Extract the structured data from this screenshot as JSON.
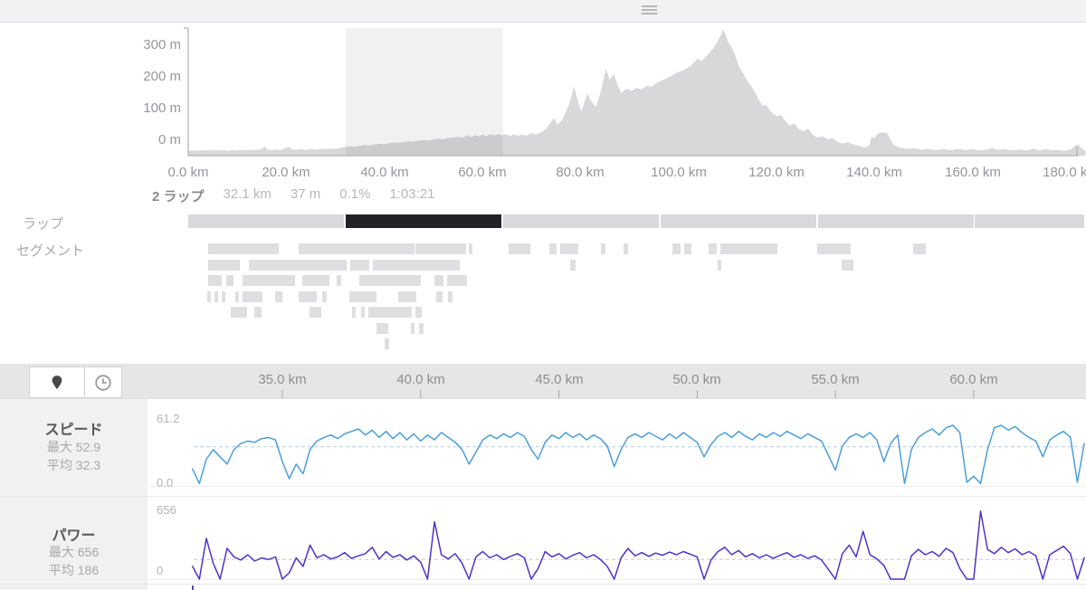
{
  "top_bar": {
    "drag_handle_icon": "drag-handle"
  },
  "lap_summary": {
    "count": "2 ラップ",
    "distance": "32.1 km",
    "elevation_gain": "37 m",
    "grade": "0.1%",
    "time": "1:03:21"
  },
  "laps": {
    "label": "ラップ",
    "start_km": [
      0,
      32.1,
      64.2,
      96.3,
      128.4,
      160.5
    ],
    "end_km": 183.4,
    "selected_index": 1
  },
  "segments": {
    "label": "セグメント",
    "rows": [
      [
        [
          230,
          78
        ],
        [
          330,
          128
        ],
        [
          459,
          56
        ],
        [
          518,
          4
        ],
        [
          562,
          24
        ],
        [
          607,
          8
        ],
        [
          619,
          20
        ],
        [
          664,
          5
        ],
        [
          689,
          5
        ],
        [
          743,
          9
        ],
        [
          756,
          8
        ],
        [
          783,
          9
        ],
        [
          796,
          63
        ],
        [
          903,
          37
        ],
        [
          1009,
          14
        ]
      ],
      [
        [
          230,
          35
        ],
        [
          275,
          108
        ],
        [
          387,
          21
        ],
        [
          412,
          96
        ],
        [
          630,
          6
        ],
        [
          793,
          4
        ],
        [
          930,
          13
        ]
      ],
      [
        [
          230,
          15
        ],
        [
          250,
          8
        ],
        [
          268,
          58
        ],
        [
          334,
          30
        ],
        [
          372,
          5
        ],
        [
          397,
          68
        ],
        [
          480,
          10
        ],
        [
          494,
          22
        ]
      ],
      [
        [
          229,
          4
        ],
        [
          237,
          4
        ],
        [
          245,
          4
        ],
        [
          260,
          4
        ],
        [
          268,
          22
        ],
        [
          304,
          8
        ],
        [
          330,
          20
        ],
        [
          356,
          5
        ],
        [
          386,
          30
        ],
        [
          440,
          20
        ],
        [
          482,
          7
        ],
        [
          495,
          5
        ]
      ],
      [
        [
          255,
          18
        ],
        [
          281,
          8
        ],
        [
          342,
          13
        ],
        [
          389,
          4
        ],
        [
          399,
          4
        ],
        [
          407,
          48
        ],
        [
          459,
          7
        ]
      ],
      [
        [
          416,
          13
        ],
        [
          454,
          4
        ],
        [
          463,
          5
        ]
      ],
      [
        [
          425,
          5
        ]
      ]
    ]
  },
  "bottom_toolbar": {
    "buttons": [
      {
        "icon": "location-pin",
        "active": true
      },
      {
        "icon": "clock",
        "active": false
      }
    ],
    "x_ticks": [
      {
        "km": 35,
        "label": "35.0 km"
      },
      {
        "km": 40,
        "label": "40.0 km"
      },
      {
        "km": 45,
        "label": "45.0 km"
      },
      {
        "km": 50,
        "label": "50.0 km"
      },
      {
        "km": 55,
        "label": "55.0 km"
      },
      {
        "km": 60,
        "label": "60.0 km"
      }
    ]
  },
  "colors": {
    "speed_line": "#4c9fd9",
    "speed_avg_dash": "#a9cfec",
    "power_line": "#4a36c8",
    "power_avg_dash": "#c8c8d2",
    "elevation_fill": "#d8d8da",
    "selection_overlay": "rgba(50,50,60,0.07)",
    "lap_bar": "#d9d9db",
    "lap_bar_selected": "#232327",
    "segment_bar": "#dfdfe1",
    "axis": "#b4b4b8"
  },
  "chart_data": [
    {
      "type": "area",
      "name": "elevation-profile",
      "x_unit": "km",
      "y_unit": "m",
      "x_range": [
        0,
        183.4
      ],
      "y_ticks": [
        {
          "v": 300,
          "label": "300 m"
        },
        {
          "v": 200,
          "label": "200 m"
        },
        {
          "v": 100,
          "label": "100 m"
        },
        {
          "v": 0,
          "label": "0 m"
        }
      ],
      "x_ticks": [
        {
          "km": 0,
          "label": "0.0 km"
        },
        {
          "km": 20,
          "label": "20.0 km"
        },
        {
          "km": 40,
          "label": "40.0 km"
        },
        {
          "km": 60,
          "label": "60.0 km"
        },
        {
          "km": 80,
          "label": "80.0 km"
        },
        {
          "km": 100,
          "label": "100.0 km"
        },
        {
          "km": 120,
          "label": "120.0 km"
        },
        {
          "km": 140,
          "label": "140.0 km"
        },
        {
          "km": 160,
          "label": "160.0 km"
        },
        {
          "km": 180,
          "label": "180.0 km"
        }
      ],
      "selection_km": [
        32.1,
        64.2
      ],
      "points": [
        [
          0,
          3
        ],
        [
          1,
          5
        ],
        [
          2,
          4
        ],
        [
          3,
          6
        ],
        [
          4,
          4
        ],
        [
          5,
          6
        ],
        [
          6,
          5
        ],
        [
          7,
          7
        ],
        [
          8,
          4
        ],
        [
          9,
          6
        ],
        [
          10,
          5
        ],
        [
          11,
          7
        ],
        [
          12,
          5
        ],
        [
          13,
          8
        ],
        [
          14,
          6
        ],
        [
          15,
          10
        ],
        [
          15.6,
          17
        ],
        [
          16.2,
          8
        ],
        [
          17,
          6
        ],
        [
          18,
          8
        ],
        [
          19,
          6
        ],
        [
          20,
          14
        ],
        [
          20.6,
          16
        ],
        [
          21.2,
          8
        ],
        [
          22,
          7
        ],
        [
          23,
          9
        ],
        [
          24,
          7
        ],
        [
          25,
          9
        ],
        [
          26,
          8
        ],
        [
          27,
          10
        ],
        [
          28,
          9
        ],
        [
          29,
          11
        ],
        [
          30,
          10
        ],
        [
          31,
          13
        ],
        [
          32,
          16
        ],
        [
          33,
          18
        ],
        [
          34,
          17
        ],
        [
          35,
          20
        ],
        [
          36,
          22
        ],
        [
          37,
          21
        ],
        [
          38,
          24
        ],
        [
          39,
          26
        ],
        [
          40,
          25
        ],
        [
          41,
          28
        ],
        [
          42,
          30
        ],
        [
          43,
          29
        ],
        [
          44,
          32
        ],
        [
          45,
          34
        ],
        [
          46,
          33
        ],
        [
          47,
          36
        ],
        [
          48,
          38
        ],
        [
          49,
          37
        ],
        [
          50,
          40
        ],
        [
          51,
          42
        ],
        [
          52,
          41
        ],
        [
          53,
          44
        ],
        [
          54,
          46
        ],
        [
          55,
          48
        ],
        [
          56,
          46
        ],
        [
          57,
          52
        ],
        [
          57.7,
          47
        ],
        [
          58.5,
          53
        ],
        [
          59.2,
          49
        ],
        [
          60,
          55
        ],
        [
          60.8,
          50
        ],
        [
          61.6,
          56
        ],
        [
          62.4,
          52
        ],
        [
          63.2,
          57
        ],
        [
          64,
          53
        ],
        [
          64.8,
          57
        ],
        [
          65.6,
          50
        ],
        [
          66.4,
          56
        ],
        [
          67.2,
          51
        ],
        [
          68,
          55
        ],
        [
          69,
          52
        ],
        [
          70,
          60
        ],
        [
          71,
          55
        ],
        [
          72,
          62
        ],
        [
          73,
          72
        ],
        [
          74,
          95
        ],
        [
          74.6,
          108
        ],
        [
          75.3,
          85
        ],
        [
          76.2,
          100
        ],
        [
          77,
          125
        ],
        [
          77.8,
          155
        ],
        [
          78.7,
          208
        ],
        [
          79.4,
          165
        ],
        [
          80.2,
          128
        ],
        [
          81.4,
          185
        ],
        [
          82.2,
          160
        ],
        [
          83.2,
          142
        ],
        [
          84.2,
          195
        ],
        [
          85.2,
          262
        ],
        [
          86,
          228
        ],
        [
          86.8,
          248
        ],
        [
          87.6,
          210
        ],
        [
          88.4,
          186
        ],
        [
          89.4,
          200
        ],
        [
          90.4,
          193
        ],
        [
          91.5,
          203
        ],
        [
          92.5,
          198
        ],
        [
          93.5,
          210
        ],
        [
          94.5,
          205
        ],
        [
          95.5,
          218
        ],
        [
          96.5,
          225
        ],
        [
          97.5,
          232
        ],
        [
          98.5,
          240
        ],
        [
          99.5,
          250
        ],
        [
          100.5,
          255
        ],
        [
          101.5,
          262
        ],
        [
          102.5,
          272
        ],
        [
          103.3,
          285
        ],
        [
          104,
          295
        ],
        [
          104.7,
          287
        ],
        [
          105.5,
          300
        ],
        [
          106.3,
          312
        ],
        [
          107.1,
          328
        ],
        [
          107.9,
          348
        ],
        [
          108.6,
          368
        ],
        [
          109.1,
          388
        ],
        [
          109.6,
          372
        ],
        [
          110.2,
          345
        ],
        [
          110.8,
          332
        ],
        [
          111.6,
          305
        ],
        [
          112.4,
          268
        ],
        [
          113.2,
          248
        ],
        [
          114,
          225
        ],
        [
          114.8,
          210
        ],
        [
          115.6,
          188
        ],
        [
          116.4,
          165
        ],
        [
          117.2,
          145
        ],
        [
          117.9,
          150
        ],
        [
          118.6,
          132
        ],
        [
          119.4,
          120
        ],
        [
          120.2,
          112
        ],
        [
          120.9,
          118
        ],
        [
          121.8,
          98
        ],
        [
          122.7,
          84
        ],
        [
          123.6,
          90
        ],
        [
          124.6,
          72
        ],
        [
          125.6,
          66
        ],
        [
          126.4,
          74
        ],
        [
          127.4,
          54
        ],
        [
          128.4,
          46
        ],
        [
          129.4,
          50
        ],
        [
          130.4,
          40
        ],
        [
          131.4,
          44
        ],
        [
          132.4,
          33
        ],
        [
          133.5,
          27
        ],
        [
          134.6,
          31
        ],
        [
          135.7,
          24
        ],
        [
          136.8,
          19
        ],
        [
          138,
          14
        ],
        [
          139,
          22
        ],
        [
          139.4,
          50
        ],
        [
          139.9,
          42
        ],
        [
          140.6,
          58
        ],
        [
          141.6,
          62
        ],
        [
          142.6,
          60
        ],
        [
          143.2,
          40
        ],
        [
          143.9,
          22
        ],
        [
          145,
          15
        ],
        [
          146.5,
          10
        ],
        [
          148,
          12
        ],
        [
          149.5,
          7
        ],
        [
          151,
          10
        ],
        [
          152.5,
          6
        ],
        [
          154,
          9
        ],
        [
          155.5,
          6
        ],
        [
          157,
          10
        ],
        [
          158.5,
          6
        ],
        [
          160,
          9
        ],
        [
          161.5,
          5
        ],
        [
          163,
          8
        ],
        [
          164,
          13
        ],
        [
          165,
          6
        ],
        [
          166.5,
          9
        ],
        [
          168,
          5
        ],
        [
          169.5,
          8
        ],
        [
          171,
          5
        ],
        [
          172.5,
          11
        ],
        [
          173.5,
          5
        ],
        [
          175,
          9
        ],
        [
          176.2,
          5
        ],
        [
          177.5,
          7
        ],
        [
          178.7,
          4
        ],
        [
          180,
          8
        ],
        [
          180.8,
          20
        ],
        [
          181.6,
          24
        ],
        [
          182.3,
          10
        ],
        [
          183,
          4
        ]
      ]
    },
    {
      "type": "line",
      "name": "speed",
      "title": "スピード",
      "max_label": "最大 52.9",
      "avg_label": "平均 32.3",
      "max": 52.9,
      "avg": 32.3,
      "axis_max": 61.2,
      "axis_min": 0,
      "axis_max_label": "61.2",
      "axis_min_label": "0.0",
      "unit": "km/h",
      "start_km": 31.75,
      "step_km": 0.25,
      "values": [
        14,
        2,
        22,
        30,
        24,
        18,
        30,
        35,
        37,
        36,
        39,
        40,
        38,
        20,
        6,
        18,
        10,
        30,
        37,
        40,
        42,
        39,
        43,
        45,
        47,
        42,
        46,
        40,
        45,
        39,
        44,
        38,
        43,
        37,
        42,
        38,
        44,
        40,
        36,
        30,
        18,
        28,
        38,
        42,
        39,
        43,
        40,
        44,
        41,
        30,
        22,
        36,
        42,
        39,
        44,
        40,
        43,
        38,
        42,
        39,
        33,
        16,
        30,
        40,
        43,
        40,
        44,
        41,
        38,
        43,
        39,
        44,
        40,
        36,
        24,
        34,
        41,
        44,
        40,
        45,
        41,
        38,
        43,
        40,
        44,
        41,
        45,
        42,
        39,
        43,
        40,
        37,
        25,
        13,
        33,
        40,
        43,
        40,
        44,
        38,
        20,
        35,
        42,
        2,
        30,
        40,
        44,
        47,
        42,
        48,
        50,
        44,
        3,
        8,
        2,
        30,
        48,
        50,
        46,
        49,
        44,
        40,
        37,
        24,
        38,
        42,
        45,
        40,
        3,
        35
      ]
    },
    {
      "type": "line",
      "name": "power",
      "title": "パワー",
      "max_label": "最大 656",
      "avg_label": "平均 186",
      "max": 656,
      "avg": 186,
      "axis_max": 656,
      "axis_min": 0,
      "axis_max_label": "656",
      "axis_min_label": "0",
      "unit": "W",
      "start_km": 31.75,
      "step_km": 0.25,
      "values": [
        120,
        0,
        383,
        150,
        0,
        290,
        210,
        180,
        230,
        170,
        200,
        185,
        210,
        0,
        60,
        200,
        120,
        320,
        200,
        230,
        190,
        210,
        250,
        195,
        220,
        240,
        300,
        190,
        260,
        205,
        230,
        180,
        220,
        160,
        0,
        540,
        230,
        190,
        240,
        150,
        0,
        210,
        260,
        200,
        230,
        185,
        215,
        240,
        200,
        0,
        100,
        260,
        210,
        240,
        190,
        225,
        250,
        200,
        230,
        185,
        120,
        0,
        200,
        290,
        220,
        250,
        215,
        245,
        225,
        255,
        230,
        260,
        235,
        210,
        0,
        180,
        260,
        300,
        230,
        270,
        210,
        240,
        200,
        230,
        195,
        225,
        250,
        205,
        230,
        195,
        220,
        180,
        90,
        0,
        240,
        320,
        210,
        450,
        230,
        190,
        130,
        0,
        0,
        0,
        220,
        280,
        230,
        260,
        215,
        290,
        250,
        100,
        0,
        0,
        640,
        280,
        240,
        300,
        250,
        285,
        230,
        260,
        220,
        0,
        230,
        270,
        310,
        240,
        0,
        200
      ]
    }
  ]
}
